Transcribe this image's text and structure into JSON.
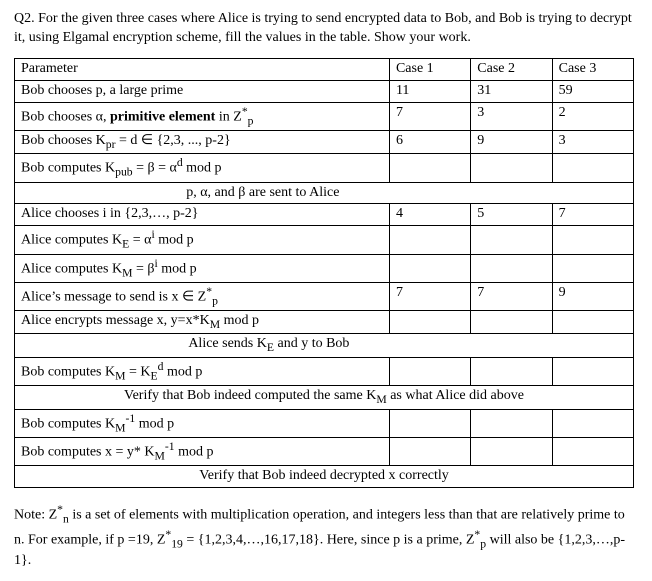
{
  "question": {
    "label": "Q2.",
    "text": "For the given three cases where Alice is trying to send encrypted data to Bob, and Bob is trying to decrypt it,  using Elgamal encryption scheme, fill the values in the table. Show your work."
  },
  "table": {
    "headers": {
      "param": "Parameter",
      "c1": "Case 1",
      "c2": "Case 2",
      "c3": "Case 3"
    },
    "rows": {
      "r1": {
        "param": "Bob chooses p, a large prime",
        "c1": "11",
        "c2": "31",
        "c3": "59"
      },
      "r2": {
        "param_html": "Bob chooses α, <b>primitive element</b> in Z<sup>*</sup><sub>p</sub>",
        "c1": "7",
        "c2": "3",
        "c3": "2"
      },
      "r3": {
        "param_html": "Bob chooses K<sub>pr</sub> = d ∈ {2,3, ..., p-2}",
        "c1": "6",
        "c2": "9",
        "c3": "3"
      },
      "r4": {
        "param_html": "Bob computes K<sub>pub</sub> = β = α<sup>d</sup> mod p",
        "c1": "",
        "c2": "",
        "c3": ""
      },
      "sep1": "p, α, and  β are sent to Alice",
      "r5": {
        "param": "Alice chooses i in {2,3,…, p-2}",
        "c1": "4",
        "c2": "5",
        "c3": "7"
      },
      "r6": {
        "param_html": "Alice computes K<sub>E</sub> = α<sup>i</sup> mod p",
        "c1": "",
        "c2": "",
        "c3": ""
      },
      "r7": {
        "param_html": "Alice computes K<sub>M</sub> = β<sup>i</sup> mod p",
        "c1": "",
        "c2": "",
        "c3": ""
      },
      "r8": {
        "param_html": "Alice’s message to send is x ∈ Z<sup>*</sup><sub>p</sub>",
        "c1": "7",
        "c2": "7",
        "c3": "9"
      },
      "r9": {
        "param_html": "Alice encrypts message x, y=x*K<sub>M</sub> mod p",
        "c1": "",
        "c2": "",
        "c3": ""
      },
      "sep2_html": "Alice sends K<sub>E</sub>  and y to Bob",
      "r10": {
        "param_html": "Bob computes K<sub>M</sub> = K<sub>E</sub><sup>d</sup> mod p",
        "c1": "",
        "c2": "",
        "c3": ""
      },
      "sep3_html": "Verify that Bob indeed computed the same K<sub>M</sub>  as what Alice did above",
      "r11": {
        "param_html": "Bob computes K<sub>M</sub><sup>-1</sup> mod p",
        "c1": "",
        "c2": "",
        "c3": ""
      },
      "r12": {
        "param_html": "Bob computes x = y* K<sub>M</sub><sup>-1</sup> mod p",
        "c1": "",
        "c2": "",
        "c3": ""
      },
      "sep4": "Verify that Bob indeed decrypted x correctly"
    }
  },
  "note_html": "Note: Z<sup>*</sup><sub>n</sub> is a set of elements with multiplication operation, and integers less than that are relatively prime to n. For example, if p =19, Z<sup>*</sup><sub>19</sub> = {1,2,3,4,…,16,17,18}. Here, since p is a prime, Z<sup>*</sup><sub>p</sub> will also be {1,2,3,…,p-1}."
}
